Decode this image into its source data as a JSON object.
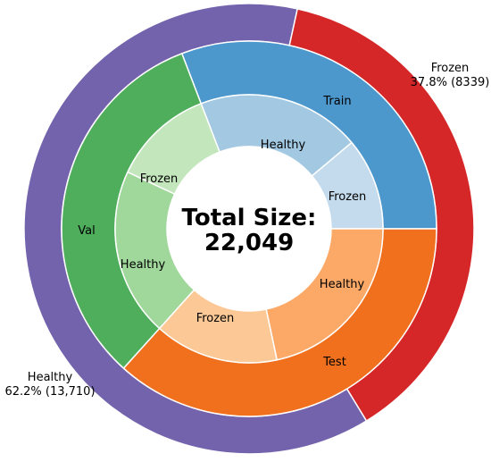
{
  "chart_data": {
    "type": "pie",
    "center": {
      "line1": "Total Size:",
      "line2": "22,049"
    },
    "outer_ring": [
      {
        "label": "Frozen",
        "percent_text": "37.8% (8339)",
        "value": 8339,
        "color": "#d62728"
      },
      {
        "label": "Healthy",
        "percent_text": "62.2% (13,710)",
        "value": 13710,
        "color": "#7363ad"
      }
    ],
    "middle_ring": [
      {
        "label": "Train",
        "color": "#4c97cc"
      },
      {
        "label": "Test",
        "color": "#f0701e"
      },
      {
        "label": "Val",
        "color": "#4fae5c"
      }
    ],
    "inner_ring": [
      {
        "label": "Healthy",
        "group": "Train",
        "color": "#a2c8e2"
      },
      {
        "label": "Frozen",
        "group": "Train",
        "color": "#c4dbed"
      },
      {
        "label": "Healthy",
        "group": "Test",
        "color": "#fca866"
      },
      {
        "label": "Frozen",
        "group": "Test",
        "color": "#fcc996"
      },
      {
        "label": "Healthy",
        "group": "Val",
        "color": "#a0d79b"
      },
      {
        "label": "Frozen",
        "group": "Val",
        "color": "#c3e6bc"
      }
    ]
  }
}
